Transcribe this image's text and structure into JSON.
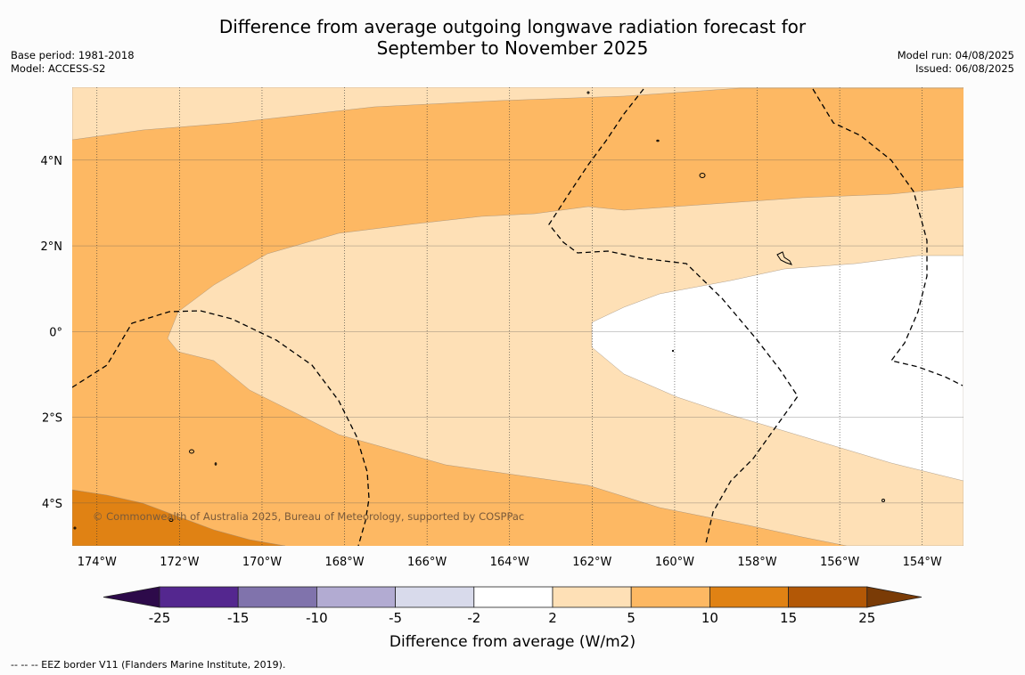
{
  "title": {
    "line1": "Difference from average outgoing longwave radiation forecast for",
    "line2": "September to November 2025"
  },
  "meta_left": {
    "base_period": "Base period: 1981-2018",
    "model": "Model: ACCESS-S2"
  },
  "meta_right": {
    "model_run": "Model run: 04/08/2025",
    "issued": "Issued: 06/08/2025"
  },
  "map": {
    "lon_range": [
      -174.6,
      -153.0
    ],
    "lat_range": [
      -5.0,
      5.7
    ],
    "lon_ticks": [
      {
        "value": -174,
        "label": "174°W"
      },
      {
        "value": -172,
        "label": "172°W"
      },
      {
        "value": -170,
        "label": "170°W"
      },
      {
        "value": -168,
        "label": "168°W"
      },
      {
        "value": -166,
        "label": "166°W"
      },
      {
        "value": -164,
        "label": "164°W"
      },
      {
        "value": -162,
        "label": "162°W"
      },
      {
        "value": -160,
        "label": "160°W"
      },
      {
        "value": -158,
        "label": "158°W"
      },
      {
        "value": -156,
        "label": "156°W"
      },
      {
        "value": -154,
        "label": "154°W"
      }
    ],
    "lat_ticks": [
      {
        "value": 4,
        "label": "4°N"
      },
      {
        "value": 2,
        "label": "2°N"
      },
      {
        "value": 0,
        "label": "0°"
      },
      {
        "value": -2,
        "label": "2°S"
      },
      {
        "value": -4,
        "label": "4°S"
      }
    ],
    "copyright": "© Commonwealth of Australia 2025, Bureau of Meteorology, supported by COSPPac"
  },
  "colorbar": {
    "label": "Difference from average (W/m2)",
    "ticks": [
      "-25",
      "-15",
      "-10",
      "-5",
      "-2",
      "2",
      "5",
      "10",
      "15",
      "25"
    ],
    "low_extend_color": "#2d0a4a",
    "high_extend_color": "#7a3b06",
    "bin_colors": [
      "#54278f",
      "#8073ac",
      "#b2abd2",
      "#d8daeb",
      "#ffffff",
      "#fee0b6",
      "#fdb863",
      "#e08214",
      "#b35806"
    ]
  },
  "footnote": "--  --  -- EEZ border V11 (Flanders Marine Institute, 2019)."
}
